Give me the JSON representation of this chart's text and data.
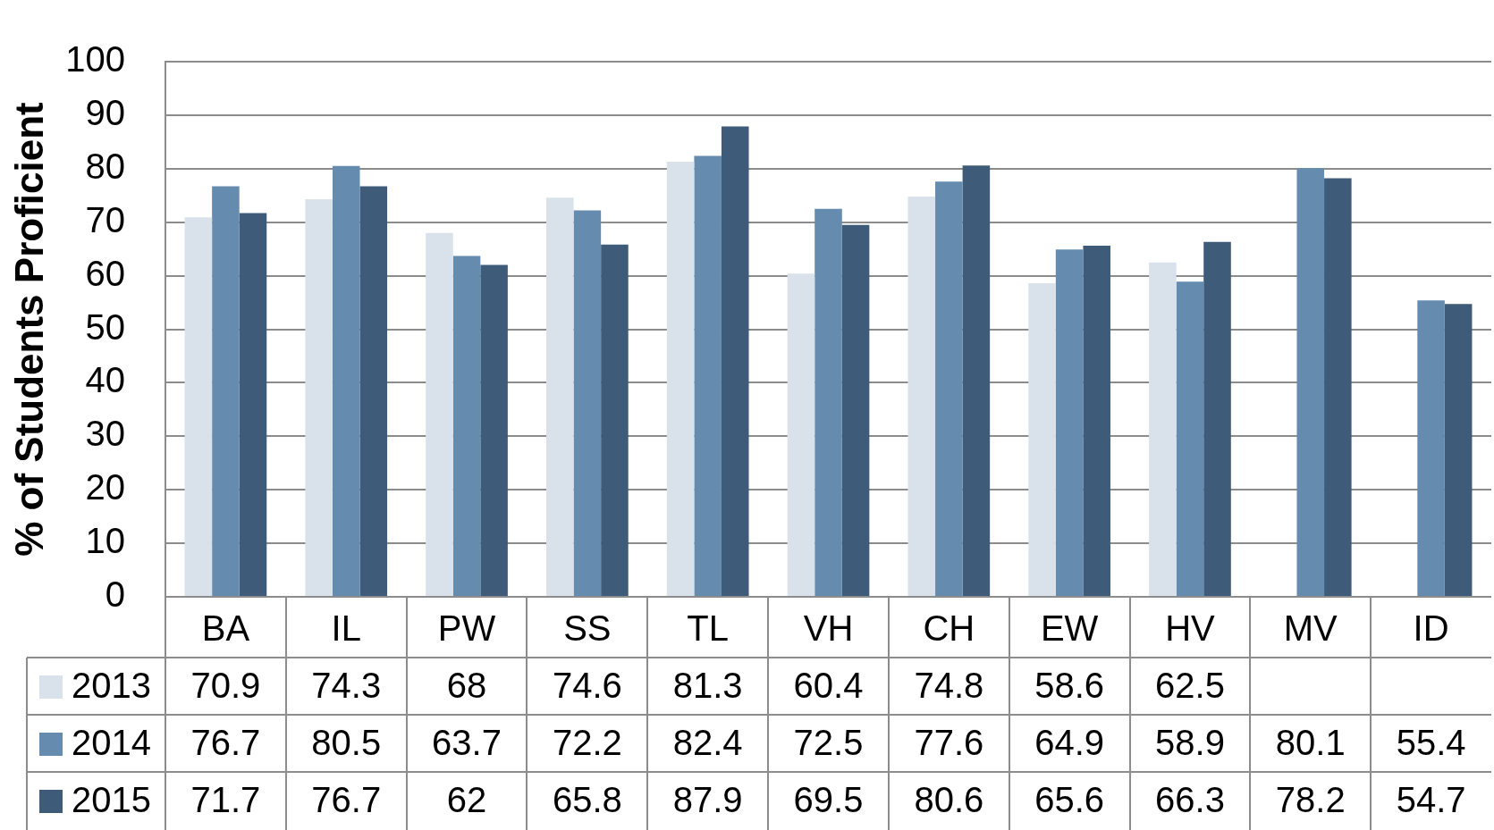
{
  "chart_data": {
    "type": "bar",
    "ylabel": "% of Students Proficient",
    "categories": [
      "BA",
      "IL",
      "PW",
      "SS",
      "TL",
      "VH",
      "CH",
      "EW",
      "HV",
      "MV",
      "ID"
    ],
    "series": [
      {
        "name": "2013",
        "color": "#d9e2ea",
        "values": [
          70.9,
          74.3,
          68,
          74.6,
          81.3,
          60.4,
          74.8,
          58.6,
          62.5,
          null,
          null
        ]
      },
      {
        "name": "2014",
        "color": "#658bae",
        "values": [
          76.7,
          80.5,
          63.7,
          72.2,
          82.4,
          72.5,
          77.6,
          64.9,
          58.9,
          80.1,
          55.4
        ]
      },
      {
        "name": "2015",
        "color": "#3e5c79",
        "values": [
          71.7,
          76.7,
          62,
          65.8,
          87.9,
          69.5,
          80.6,
          65.6,
          66.3,
          78.2,
          54.7
        ]
      }
    ],
    "ylim": [
      0,
      100
    ],
    "yticks": [
      0,
      10,
      20,
      30,
      40,
      50,
      60,
      70,
      80,
      90,
      100
    ],
    "grid": "y",
    "legend": "bottom left",
    "data_labels": true
  }
}
